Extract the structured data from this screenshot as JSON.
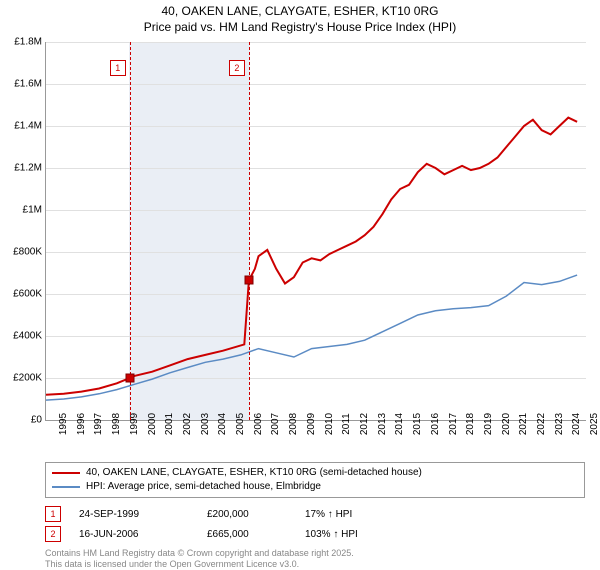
{
  "title": {
    "line1": "40, OAKEN LANE, CLAYGATE, ESHER, KT10 0RG",
    "line2": "Price paid vs. HM Land Registry's House Price Index (HPI)"
  },
  "chart": {
    "type": "line",
    "background_color": "#ffffff",
    "grid_color": "#e0e0e0",
    "shade_color": "#eaeef5",
    "x_years": [
      1995,
      1996,
      1997,
      1998,
      1999,
      2000,
      2001,
      2002,
      2003,
      2004,
      2005,
      2006,
      2007,
      2008,
      2009,
      2010,
      2011,
      2012,
      2013,
      2014,
      2015,
      2016,
      2017,
      2018,
      2019,
      2020,
      2021,
      2022,
      2023,
      2024,
      2025
    ],
    "xlim": [
      1995,
      2025.5
    ],
    "ylim": [
      0,
      1800000
    ],
    "ytick_step": 200000,
    "ytick_labels": [
      "£0",
      "£200K",
      "£400K",
      "£600K",
      "£800K",
      "£1M",
      "£1.2M",
      "£1.4M",
      "£1.6M",
      "£1.8M"
    ],
    "shade_range": [
      1999.7,
      2006.5
    ],
    "series": {
      "price_paid": {
        "color": "#cc0000",
        "width": 2,
        "label": "40, OAKEN LANE, CLAYGATE, ESHER, KT10 0RG (semi-detached house)",
        "points": [
          [
            1995,
            120000
          ],
          [
            1996,
            125000
          ],
          [
            1997,
            135000
          ],
          [
            1998,
            150000
          ],
          [
            1999,
            175000
          ],
          [
            1999.73,
            200000
          ],
          [
            2000,
            210000
          ],
          [
            2001,
            230000
          ],
          [
            2002,
            260000
          ],
          [
            2003,
            290000
          ],
          [
            2004,
            310000
          ],
          [
            2005,
            330000
          ],
          [
            2006.2,
            360000
          ],
          [
            2006.46,
            665000
          ],
          [
            2006.8,
            720000
          ],
          [
            2007,
            780000
          ],
          [
            2007.5,
            810000
          ],
          [
            2008,
            720000
          ],
          [
            2008.5,
            650000
          ],
          [
            2009,
            680000
          ],
          [
            2009.5,
            750000
          ],
          [
            2010,
            770000
          ],
          [
            2010.5,
            760000
          ],
          [
            2011,
            790000
          ],
          [
            2011.5,
            810000
          ],
          [
            2012,
            830000
          ],
          [
            2012.5,
            850000
          ],
          [
            2013,
            880000
          ],
          [
            2013.5,
            920000
          ],
          [
            2014,
            980000
          ],
          [
            2014.5,
            1050000
          ],
          [
            2015,
            1100000
          ],
          [
            2015.5,
            1120000
          ],
          [
            2016,
            1180000
          ],
          [
            2016.5,
            1220000
          ],
          [
            2017,
            1200000
          ],
          [
            2017.5,
            1170000
          ],
          [
            2018,
            1190000
          ],
          [
            2018.5,
            1210000
          ],
          [
            2019,
            1190000
          ],
          [
            2019.5,
            1200000
          ],
          [
            2020,
            1220000
          ],
          [
            2020.5,
            1250000
          ],
          [
            2021,
            1300000
          ],
          [
            2021.5,
            1350000
          ],
          [
            2022,
            1400000
          ],
          [
            2022.5,
            1430000
          ],
          [
            2023,
            1380000
          ],
          [
            2023.5,
            1360000
          ],
          [
            2024,
            1400000
          ],
          [
            2024.5,
            1440000
          ],
          [
            2025,
            1420000
          ]
        ]
      },
      "hpi": {
        "color": "#5b8bc4",
        "width": 1.5,
        "label": "HPI: Average price, semi-detached house, Elmbridge",
        "points": [
          [
            1995,
            95000
          ],
          [
            1996,
            100000
          ],
          [
            1997,
            110000
          ],
          [
            1998,
            125000
          ],
          [
            1999,
            145000
          ],
          [
            2000,
            170000
          ],
          [
            2001,
            195000
          ],
          [
            2002,
            225000
          ],
          [
            2003,
            250000
          ],
          [
            2004,
            275000
          ],
          [
            2005,
            290000
          ],
          [
            2006,
            310000
          ],
          [
            2007,
            340000
          ],
          [
            2008,
            320000
          ],
          [
            2009,
            300000
          ],
          [
            2010,
            340000
          ],
          [
            2011,
            350000
          ],
          [
            2012,
            360000
          ],
          [
            2013,
            380000
          ],
          [
            2014,
            420000
          ],
          [
            2015,
            460000
          ],
          [
            2016,
            500000
          ],
          [
            2017,
            520000
          ],
          [
            2018,
            530000
          ],
          [
            2019,
            535000
          ],
          [
            2020,
            545000
          ],
          [
            2021,
            590000
          ],
          [
            2022,
            655000
          ],
          [
            2023,
            645000
          ],
          [
            2024,
            660000
          ],
          [
            2025,
            690000
          ]
        ]
      }
    },
    "markers": [
      {
        "num": "1",
        "year": 1999.73,
        "value": 200000,
        "box_top": 18
      },
      {
        "num": "2",
        "year": 2006.46,
        "value": 665000,
        "box_top": 18
      }
    ]
  },
  "legend": {
    "series": [
      {
        "color": "#cc0000",
        "width": 2,
        "label": "40, OAKEN LANE, CLAYGATE, ESHER, KT10 0RG (semi-detached house)"
      },
      {
        "color": "#5b8bc4",
        "width": 1.5,
        "label": "HPI: Average price, semi-detached house, Elmbridge"
      }
    ],
    "sales": [
      {
        "num": "1",
        "date": "24-SEP-1999",
        "price": "£200,000",
        "hpi": "17% ↑ HPI"
      },
      {
        "num": "2",
        "date": "16-JUN-2006",
        "price": "£665,000",
        "hpi": "103% ↑ HPI"
      }
    ]
  },
  "footer": {
    "line1": "Contains HM Land Registry data © Crown copyright and database right 2025.",
    "line2": "This data is licensed under the Open Government Licence v3.0."
  }
}
